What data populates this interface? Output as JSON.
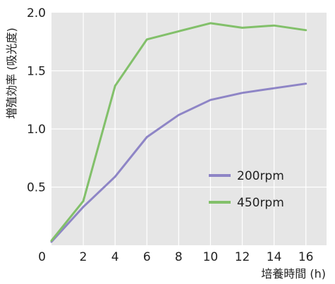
{
  "chart_data": {
    "type": "line",
    "title": "",
    "xlabel": "培養時間 (h)",
    "ylabel": "増殖効率 (吸光度)",
    "xlim": [
      0,
      17.3
    ],
    "ylim": [
      0,
      2.0
    ],
    "x_ticks": [
      0,
      2,
      4,
      6,
      8,
      10,
      12,
      14,
      16
    ],
    "y_ticks": [
      0.5,
      1.0,
      1.5,
      2.0
    ],
    "y_tick_labels": [
      "0.5",
      "1.0",
      "1.5",
      "2.0"
    ],
    "origin_label": "0",
    "grid": true,
    "legend_position": "right",
    "series": [
      {
        "name": "200rpm",
        "color": "#8e85c6",
        "x": [
          0,
          2,
          4,
          6,
          8,
          10,
          12,
          14,
          16
        ],
        "y": [
          0.03,
          0.33,
          0.59,
          0.93,
          1.12,
          1.25,
          1.31,
          1.35,
          1.39
        ]
      },
      {
        "name": "450rpm",
        "color": "#82c06a",
        "x": [
          0,
          2,
          4,
          6,
          8,
          10,
          12,
          14,
          16
        ],
        "y": [
          0.04,
          0.38,
          1.37,
          1.77,
          1.84,
          1.91,
          1.87,
          1.89,
          1.85
        ]
      }
    ],
    "plot_background": "#e6e6e6",
    "grid_color": "#ffffff"
  }
}
